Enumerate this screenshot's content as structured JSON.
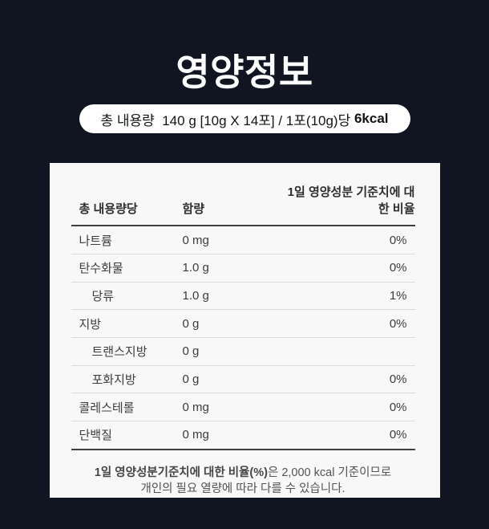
{
  "page": {
    "title": "영양정보",
    "badge": {
      "text": "총 내용량  140 g [10g X 14포] / 1포(10g)당 ",
      "bold": "6kcal"
    }
  },
  "colors": {
    "background": "#111522",
    "card": "#f8f8f9",
    "badge_background": "#ffffff",
    "divider_strong": "#3f3f3f",
    "divider_light": "#dadadb"
  },
  "table": {
    "headers": [
      "총 내용량당",
      "함량",
      "1일 영양성분 기준치에 대한 비율"
    ],
    "rows": [
      {
        "label": "나트륨",
        "indent": false,
        "amount": "0 mg",
        "percent": "0%"
      },
      {
        "label": "탄수화물",
        "indent": false,
        "amount": "1.0 g",
        "percent": "0%"
      },
      {
        "label": "당류",
        "indent": true,
        "amount": "1.0 g",
        "percent": "1%"
      },
      {
        "label": "지방",
        "indent": false,
        "amount": "0 g",
        "percent": "0%"
      },
      {
        "label": "트랜스지방",
        "indent": true,
        "amount": "0 g",
        "percent": ""
      },
      {
        "label": "포화지방",
        "indent": true,
        "amount": "0 g",
        "percent": "0%"
      },
      {
        "label": "콜레스테롤",
        "indent": false,
        "amount": "0 mg",
        "percent": "0%"
      },
      {
        "label": "단백질",
        "indent": false,
        "amount": "0 mg",
        "percent": "0%"
      }
    ],
    "footnote": {
      "bold": "1일 영양성분기준치에 대한 비율(%)",
      "line1_rest": "은 2,000 kcal 기준이므로",
      "line2": "개인의 필요 열량에 따라 다를 수 있습니다."
    }
  }
}
